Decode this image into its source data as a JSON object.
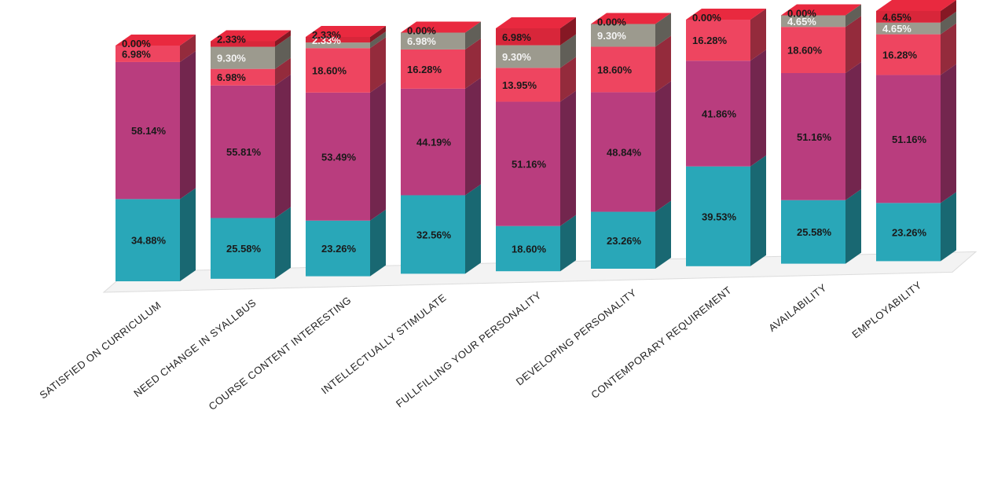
{
  "chart_data": {
    "type": "bar",
    "stacked": true,
    "three_d": true,
    "title": "",
    "xlabel": "",
    "ylabel": "",
    "ylim": [
      0,
      100
    ],
    "grid": false,
    "legend": "none",
    "categories": [
      "SATISFIED ON CURRICULUM",
      "NEED CHANGE IN SYALLBUS",
      "COURSE CONTENT INTERESTING",
      "INTELLECTUALLY STIMULATE",
      "FULLFILLING YOUR PERSONALITY",
      "DEVELOPING PERSONALITY",
      "CONTEMPORARY REQUIREMENT",
      "AVAILABILITY",
      "EMPLOYABILITY"
    ],
    "series": [
      {
        "color": "#29a7b8",
        "values": [
          34.88,
          25.58,
          23.26,
          32.56,
          18.6,
          23.26,
          39.53,
          25.58,
          23.26
        ],
        "labels": [
          "34.88%",
          "25.58%",
          "23.26%",
          "32.56%",
          "18.60%",
          "23.26%",
          "39.53%",
          "25.58%",
          "23.26%"
        ]
      },
      {
        "color": "#b93d7e",
        "values": [
          58.14,
          55.81,
          53.49,
          44.19,
          51.16,
          48.84,
          41.86,
          51.16,
          51.16
        ],
        "labels": [
          "58.14%",
          "55.81%",
          "53.49%",
          "44.19%",
          "51.16%",
          "48.84%",
          "41.86%",
          "51.16%",
          "51.16%"
        ]
      },
      {
        "color": "#ee4560",
        "values": [
          6.98,
          6.98,
          18.6,
          16.28,
          13.95,
          18.6,
          16.28,
          18.6,
          16.28
        ],
        "labels": [
          "6.98%",
          "6.98%",
          "18.60%",
          "16.28%",
          "13.95%",
          "18.60%",
          "16.28%",
          "18.60%",
          "16.28%"
        ]
      },
      {
        "color": "#9c9a8e",
        "values": [
          0,
          9.3,
          2.33,
          6.98,
          9.3,
          9.3,
          0,
          4.65,
          4.65
        ],
        "labels": [
          "",
          "9.30%",
          "2.33%",
          "6.98%",
          "9.30%",
          "9.30%",
          "",
          "4.65%",
          "4.65%"
        ]
      },
      {
        "color": "#d8263a",
        "values": [
          0.0,
          2.33,
          2.33,
          0.0,
          6.98,
          0.0,
          0.0,
          0.0,
          4.65
        ],
        "labels": [
          "0.00%",
          "2.33%",
          "2.33%",
          "0.00%",
          "6.98%",
          "0.00%",
          "0.00%",
          "0.00%",
          "4.65%"
        ]
      }
    ]
  }
}
